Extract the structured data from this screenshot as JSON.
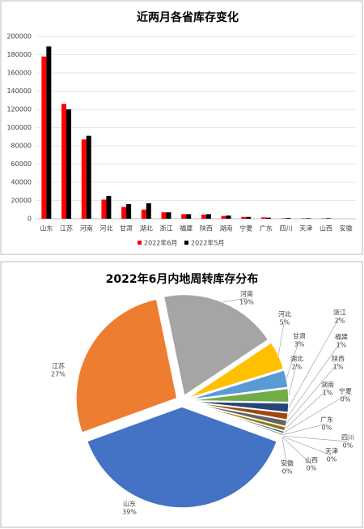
{
  "chart_data": [
    {
      "type": "bar",
      "title": "近两月各省库存变化",
      "categories": [
        "山东",
        "江苏",
        "河南",
        "河北",
        "甘肃",
        "湖北",
        "浙江",
        "福建",
        "陕西",
        "湖南",
        "宁夏",
        "广东",
        "四川",
        "天津",
        "山西",
        "安徽"
      ],
      "series": [
        {
          "name": "2022年6月",
          "color": "#ff0000",
          "values": [
            178000,
            126000,
            87000,
            21000,
            13000,
            10000,
            7000,
            5000,
            4500,
            3000,
            2000,
            1500,
            500,
            500,
            400,
            0
          ]
        },
        {
          "name": "2022年5月",
          "color": "#000000",
          "values": [
            189000,
            120000,
            91000,
            25000,
            16000,
            17000,
            7000,
            5000,
            5000,
            3500,
            2000,
            1200,
            800,
            600,
            600,
            0
          ]
        }
      ],
      "ylim": [
        0,
        200000
      ],
      "yticks": [
        0,
        20000,
        40000,
        60000,
        80000,
        100000,
        120000,
        140000,
        160000,
        180000,
        200000
      ],
      "legend": "bottom"
    },
    {
      "type": "pie",
      "title": "2022年6月内地周转库存分布",
      "categories": [
        "山东",
        "江苏",
        "河南",
        "河北",
        "甘肃",
        "湖北",
        "浙江",
        "福建",
        "陕西",
        "湖南",
        "宁夏",
        "广东",
        "四川",
        "天津",
        "山西",
        "安徽"
      ],
      "values": [
        38.9,
        27.3,
        18.9,
        4.6,
        2.8,
        2.2,
        1.5,
        1.1,
        1.0,
        0.7,
        0.4,
        0.3,
        0.1,
        0.1,
        0.1,
        0.0
      ],
      "value_labels": [
        "39%",
        "27%",
        "19%",
        "5%",
        "3%",
        "2%",
        "2%",
        "1%",
        "1%",
        "1%",
        "0%",
        "0%",
        "0%",
        "0%",
        "0%",
        "0%"
      ],
      "colors": [
        "#4472c4",
        "#ed7d31",
        "#a5a5a5",
        "#ffc000",
        "#5b9bd5",
        "#70ad47",
        "#264478",
        "#9e480e",
        "#636363",
        "#997300",
        "#255e91",
        "#43682b",
        "#698ed0",
        "#f1975a",
        "#b7b7b7",
        "#ffcd33"
      ]
    }
  ]
}
